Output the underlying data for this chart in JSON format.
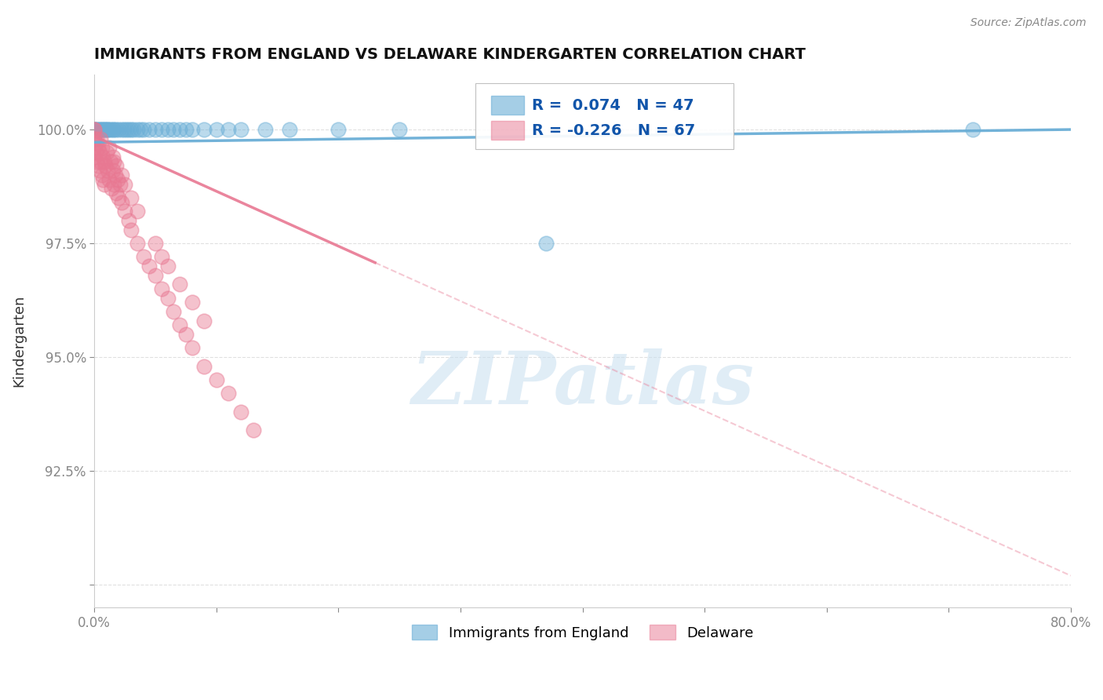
{
  "title": "IMMIGRANTS FROM ENGLAND VS DELAWARE KINDERGARTEN CORRELATION CHART",
  "source_text": "Source: ZipAtlas.com",
  "ylabel": "Kindergarten",
  "watermark_text": "ZIPatlas",
  "blue_color": "#6aaed6",
  "pink_color": "#e87892",
  "bg_color": "#ffffff",
  "grid_color": "#cccccc",
  "x_range": [
    0.0,
    0.8
  ],
  "y_range": [
    89.5,
    101.2
  ],
  "y_ticks": [
    90.0,
    92.5,
    95.0,
    97.5,
    100.0
  ],
  "y_tick_labels": [
    "",
    "92.5%",
    "95.0%",
    "97.5%",
    "100.0%"
  ],
  "blue_scatter_x": [
    0.0,
    0.0,
    0.0,
    0.001,
    0.002,
    0.003,
    0.004,
    0.005,
    0.006,
    0.007,
    0.008,
    0.009,
    0.01,
    0.011,
    0.012,
    0.013,
    0.015,
    0.016,
    0.018,
    0.02,
    0.022,
    0.024,
    0.026,
    0.028,
    0.03,
    0.032,
    0.035,
    0.038,
    0.04,
    0.045,
    0.05,
    0.055,
    0.06,
    0.065,
    0.07,
    0.075,
    0.08,
    0.09,
    0.1,
    0.11,
    0.12,
    0.14,
    0.16,
    0.2,
    0.25,
    0.37,
    0.72
  ],
  "blue_scatter_y": [
    100.0,
    100.0,
    99.8,
    100.0,
    100.0,
    100.0,
    100.0,
    100.0,
    100.0,
    100.0,
    100.0,
    100.0,
    100.0,
    100.0,
    100.0,
    100.0,
    100.0,
    100.0,
    100.0,
    100.0,
    100.0,
    100.0,
    100.0,
    100.0,
    100.0,
    100.0,
    100.0,
    100.0,
    100.0,
    100.0,
    100.0,
    100.0,
    100.0,
    100.0,
    100.0,
    100.0,
    100.0,
    100.0,
    100.0,
    100.0,
    100.0,
    100.0,
    100.0,
    100.0,
    100.0,
    97.5,
    100.0
  ],
  "pink_scatter_x": [
    0.0,
    0.0,
    0.0,
    0.0,
    0.0,
    0.001,
    0.001,
    0.002,
    0.002,
    0.003,
    0.003,
    0.004,
    0.004,
    0.005,
    0.005,
    0.006,
    0.006,
    0.007,
    0.007,
    0.008,
    0.008,
    0.009,
    0.01,
    0.011,
    0.012,
    0.013,
    0.014,
    0.015,
    0.016,
    0.017,
    0.018,
    0.019,
    0.02,
    0.021,
    0.022,
    0.025,
    0.028,
    0.03,
    0.035,
    0.04,
    0.045,
    0.05,
    0.055,
    0.06,
    0.065,
    0.07,
    0.075,
    0.08,
    0.09,
    0.1,
    0.11,
    0.12,
    0.13,
    0.015,
    0.018,
    0.022,
    0.025,
    0.03,
    0.035,
    0.05,
    0.055,
    0.06,
    0.07,
    0.08,
    0.09,
    0.012,
    0.016
  ],
  "pink_scatter_y": [
    100.0,
    100.0,
    99.8,
    99.6,
    99.4,
    99.7,
    99.5,
    99.8,
    99.3,
    99.6,
    99.2,
    99.5,
    99.1,
    99.8,
    99.3,
    99.6,
    99.0,
    99.4,
    98.9,
    99.3,
    98.8,
    99.2,
    99.5,
    99.1,
    98.9,
    99.3,
    98.7,
    99.1,
    98.8,
    99.0,
    98.6,
    98.9,
    98.5,
    98.8,
    98.4,
    98.2,
    98.0,
    97.8,
    97.5,
    97.2,
    97.0,
    96.8,
    96.5,
    96.3,
    96.0,
    95.7,
    95.5,
    95.2,
    94.8,
    94.5,
    94.2,
    93.8,
    93.4,
    99.4,
    99.2,
    99.0,
    98.8,
    98.5,
    98.2,
    97.5,
    97.2,
    97.0,
    96.6,
    96.2,
    95.8,
    99.6,
    99.3
  ],
  "blue_trend_x0": 0.0,
  "blue_trend_y0": 99.72,
  "blue_trend_x1": 0.8,
  "blue_trend_y1": 100.0,
  "pink_trend_x0": 0.0,
  "pink_trend_y0": 99.85,
  "pink_trend_x1_solid": 0.23,
  "pink_trend_y1_solid": 97.6,
  "pink_trend_x1_dashed": 0.8,
  "pink_trend_y1_dashed": 90.2,
  "legend_r_blue": "R =  0.074",
  "legend_n_blue": "N = 47",
  "legend_r_pink": "R = -0.226",
  "legend_n_pink": "N = 67",
  "legend_label_blue": "Immigrants from England",
  "legend_label_pink": "Delaware"
}
